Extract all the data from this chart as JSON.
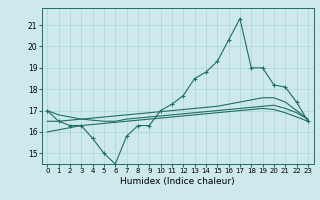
{
  "xlabel": "Humidex (Indice chaleur)",
  "x_values": [
    0,
    1,
    2,
    3,
    4,
    5,
    6,
    7,
    8,
    9,
    10,
    11,
    12,
    13,
    14,
    15,
    16,
    17,
    18,
    19,
    20,
    21,
    22,
    23
  ],
  "line1_y": [
    17.0,
    16.5,
    16.3,
    16.3,
    15.7,
    15.0,
    14.5,
    15.8,
    16.3,
    16.3,
    17.0,
    17.3,
    17.7,
    18.5,
    18.8,
    19.3,
    20.3,
    21.3,
    19.0,
    19.0,
    18.2,
    18.1,
    17.4,
    16.5
  ],
  "line2_y": [
    17.0,
    16.8,
    16.7,
    16.6,
    16.55,
    16.5,
    16.5,
    16.6,
    16.65,
    16.7,
    16.75,
    16.8,
    16.85,
    16.9,
    16.95,
    17.0,
    17.05,
    17.1,
    17.15,
    17.2,
    17.25,
    17.1,
    16.9,
    16.6
  ],
  "line3_y": [
    16.5,
    16.5,
    16.55,
    16.6,
    16.65,
    16.7,
    16.75,
    16.8,
    16.85,
    16.9,
    16.95,
    17.0,
    17.05,
    17.1,
    17.15,
    17.2,
    17.3,
    17.4,
    17.5,
    17.6,
    17.6,
    17.4,
    17.0,
    16.6
  ],
  "line4_y": [
    16.0,
    16.1,
    16.2,
    16.3,
    16.35,
    16.4,
    16.45,
    16.5,
    16.55,
    16.6,
    16.65,
    16.7,
    16.75,
    16.8,
    16.85,
    16.9,
    16.95,
    17.0,
    17.05,
    17.1,
    17.05,
    16.9,
    16.7,
    16.5
  ],
  "line_color": "#1e6e65",
  "bg_color": "#cde9eb",
  "grid_color": "#aed4d6",
  "ylim": [
    14.5,
    21.8
  ],
  "ytick_vals": [
    15,
    16,
    17,
    18,
    19,
    20,
    21
  ],
  "xtick_vals": [
    0,
    1,
    2,
    3,
    4,
    5,
    6,
    7,
    8,
    9,
    10,
    11,
    12,
    13,
    14,
    15,
    16,
    17,
    18,
    19,
    20,
    21,
    22,
    23
  ]
}
